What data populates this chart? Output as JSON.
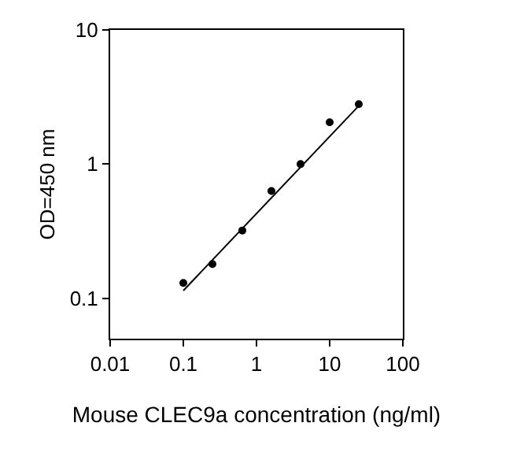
{
  "chart_data": {
    "type": "scatter",
    "xlabel": "Mouse CLEC9a concentration (ng/ml)",
    "ylabel": "OD=450 nm",
    "x": [
      0.1,
      0.25,
      0.64,
      1.6,
      4,
      10,
      25
    ],
    "series": [
      {
        "color": "#000000",
        "values": [
          0.13,
          0.18,
          0.32,
          0.63,
          1.0,
          2.05,
          2.8
        ],
        "marker": "circle"
      },
      {
        "type": "line",
        "color": "#000000",
        "x": [
          0.1,
          25
        ],
        "values": [
          0.114,
          2.72
        ],
        "marker": "none",
        "line_style": "solid"
      }
    ],
    "log": "xy",
    "xlim": [
      0.01,
      100
    ],
    "ylim": [
      0.05,
      10
    ],
    "xticks": [
      0.01,
      0.1,
      1,
      10,
      100
    ],
    "yticks": [
      0.1,
      1,
      10
    ]
  }
}
